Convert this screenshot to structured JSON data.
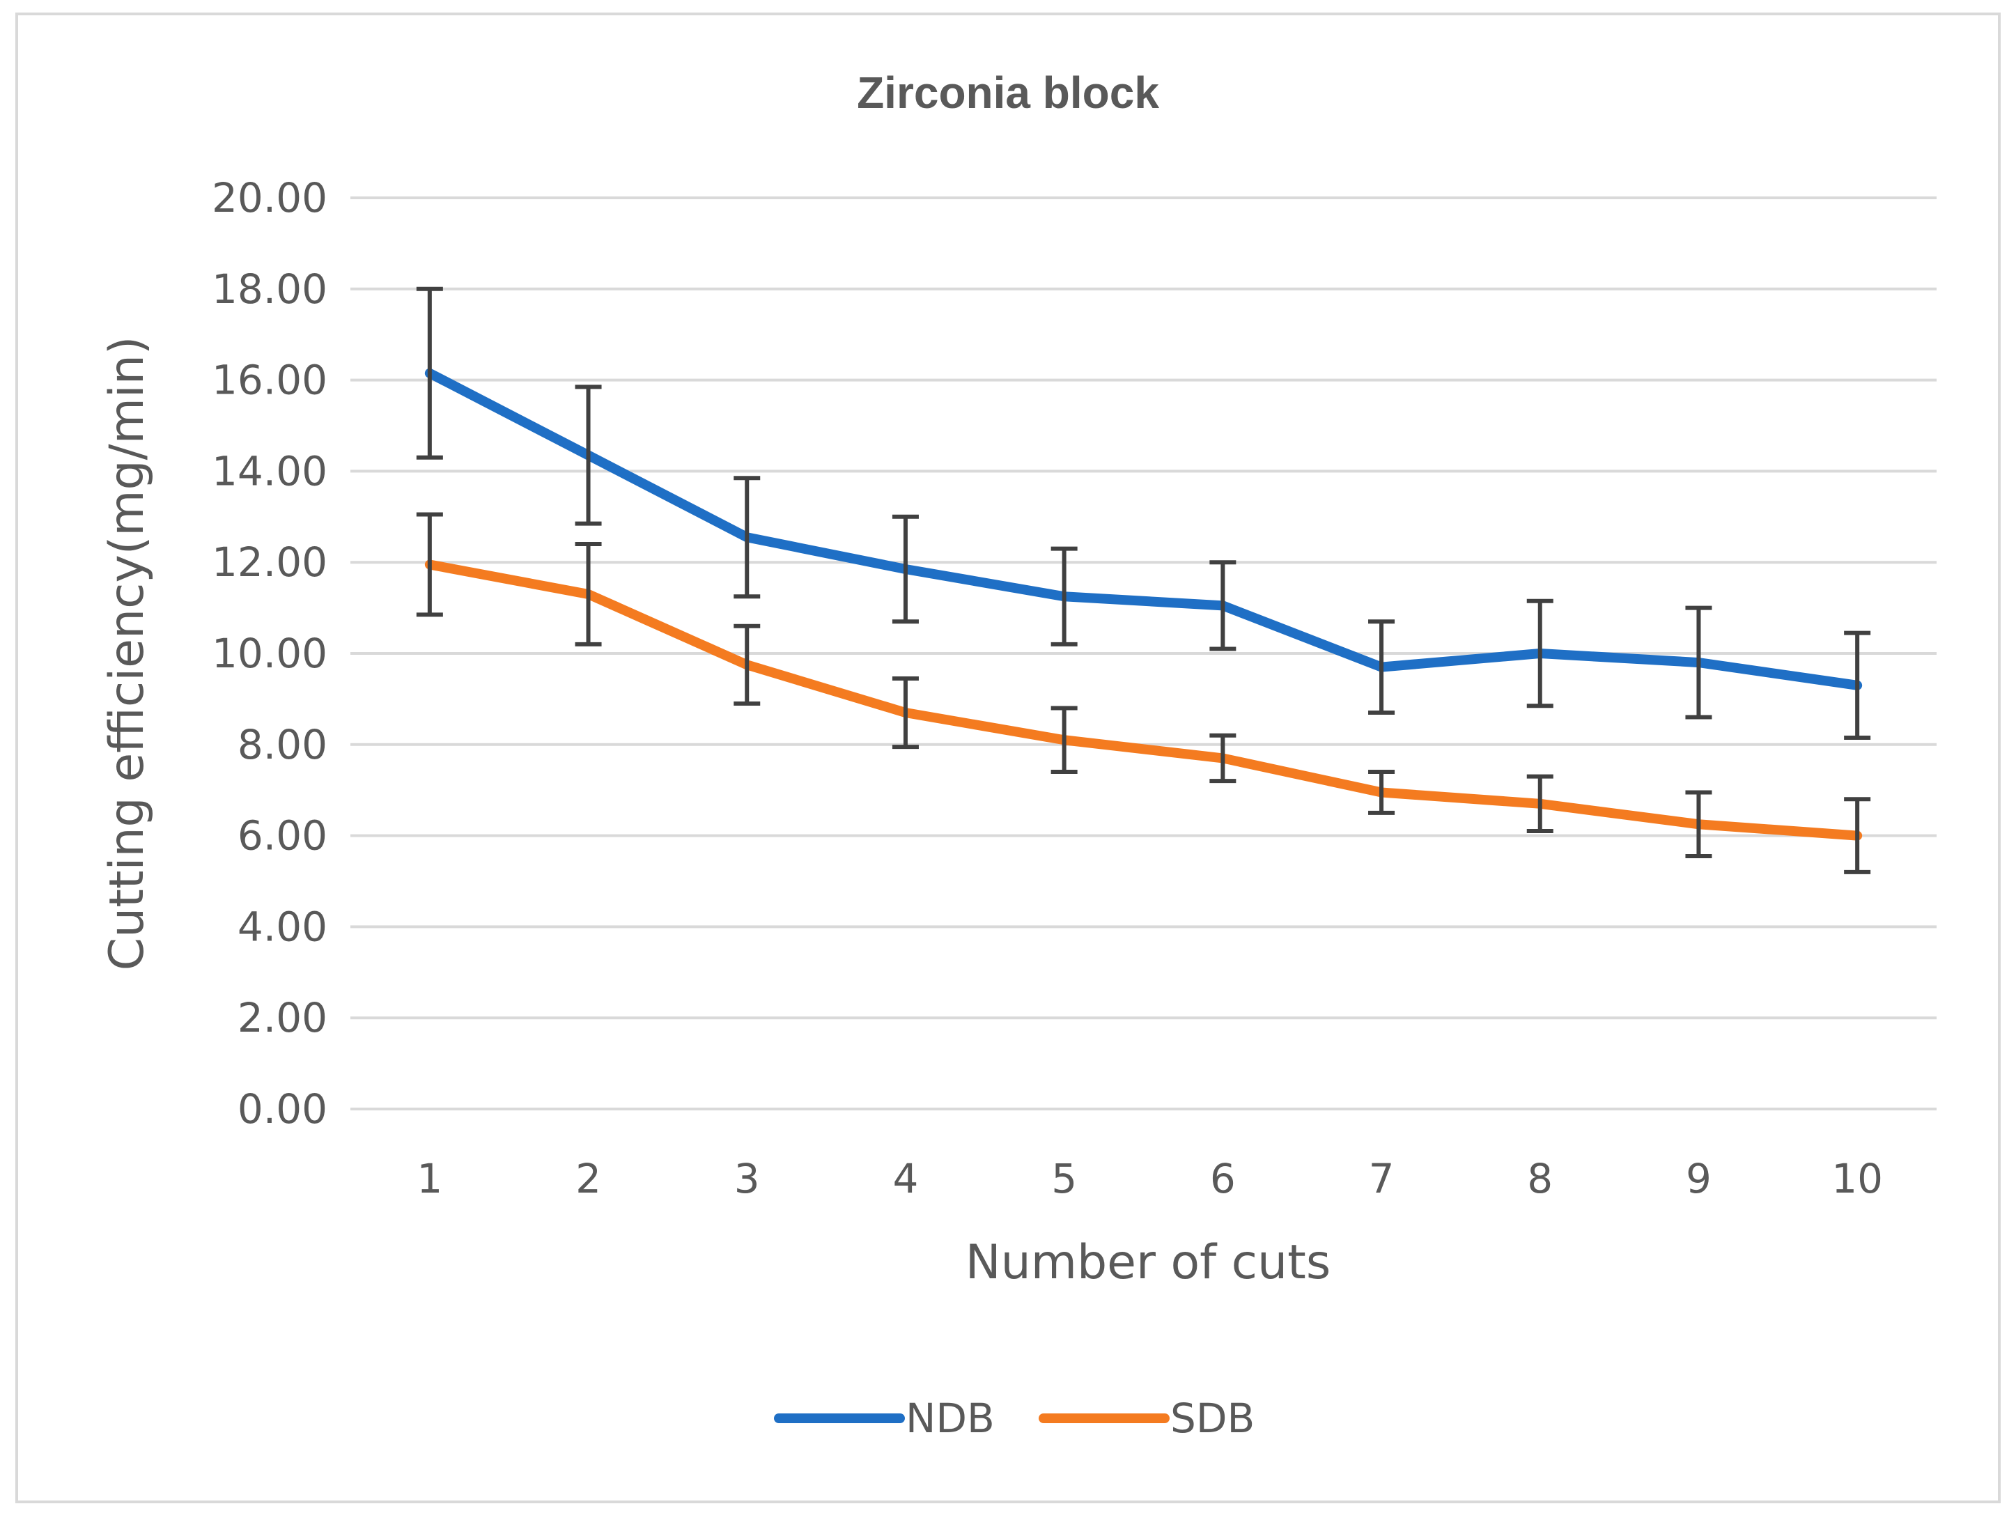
{
  "chart_data": {
    "type": "line",
    "title": "Zirconia block",
    "xlabel": "Number of cuts",
    "ylabel": "Cutting efficiency(mg/min)",
    "categories": [
      "1",
      "2",
      "3",
      "4",
      "5",
      "6",
      "7",
      "8",
      "9",
      "10"
    ],
    "y_ticks": [
      "0.00",
      "2.00",
      "4.00",
      "6.00",
      "8.00",
      "10.00",
      "12.00",
      "14.00",
      "16.00",
      "18.00",
      "20.00"
    ],
    "ylim": [
      0,
      20
    ],
    "grid": true,
    "legend_position": "bottom",
    "series": [
      {
        "name": "NDB",
        "color": "#1f6fc5",
        "values": [
          16.15,
          14.35,
          12.55,
          11.85,
          11.25,
          11.05,
          9.7,
          10.0,
          9.8,
          9.3
        ],
        "error": [
          1.85,
          1.5,
          1.3,
          1.15,
          1.05,
          0.95,
          1.0,
          1.15,
          1.2,
          1.15
        ]
      },
      {
        "name": "SDB",
        "color": "#f47b20",
        "values": [
          11.95,
          11.3,
          9.75,
          8.7,
          8.1,
          7.7,
          6.95,
          6.7,
          6.25,
          6.0
        ],
        "error": [
          1.1,
          1.1,
          0.85,
          0.75,
          0.7,
          0.5,
          0.45,
          0.6,
          0.7,
          0.8
        ]
      }
    ]
  },
  "colors": {
    "gridline": "#d9d9d9",
    "error_bar": "#404040",
    "text": "#595959",
    "frame": "#d9d9d9"
  }
}
